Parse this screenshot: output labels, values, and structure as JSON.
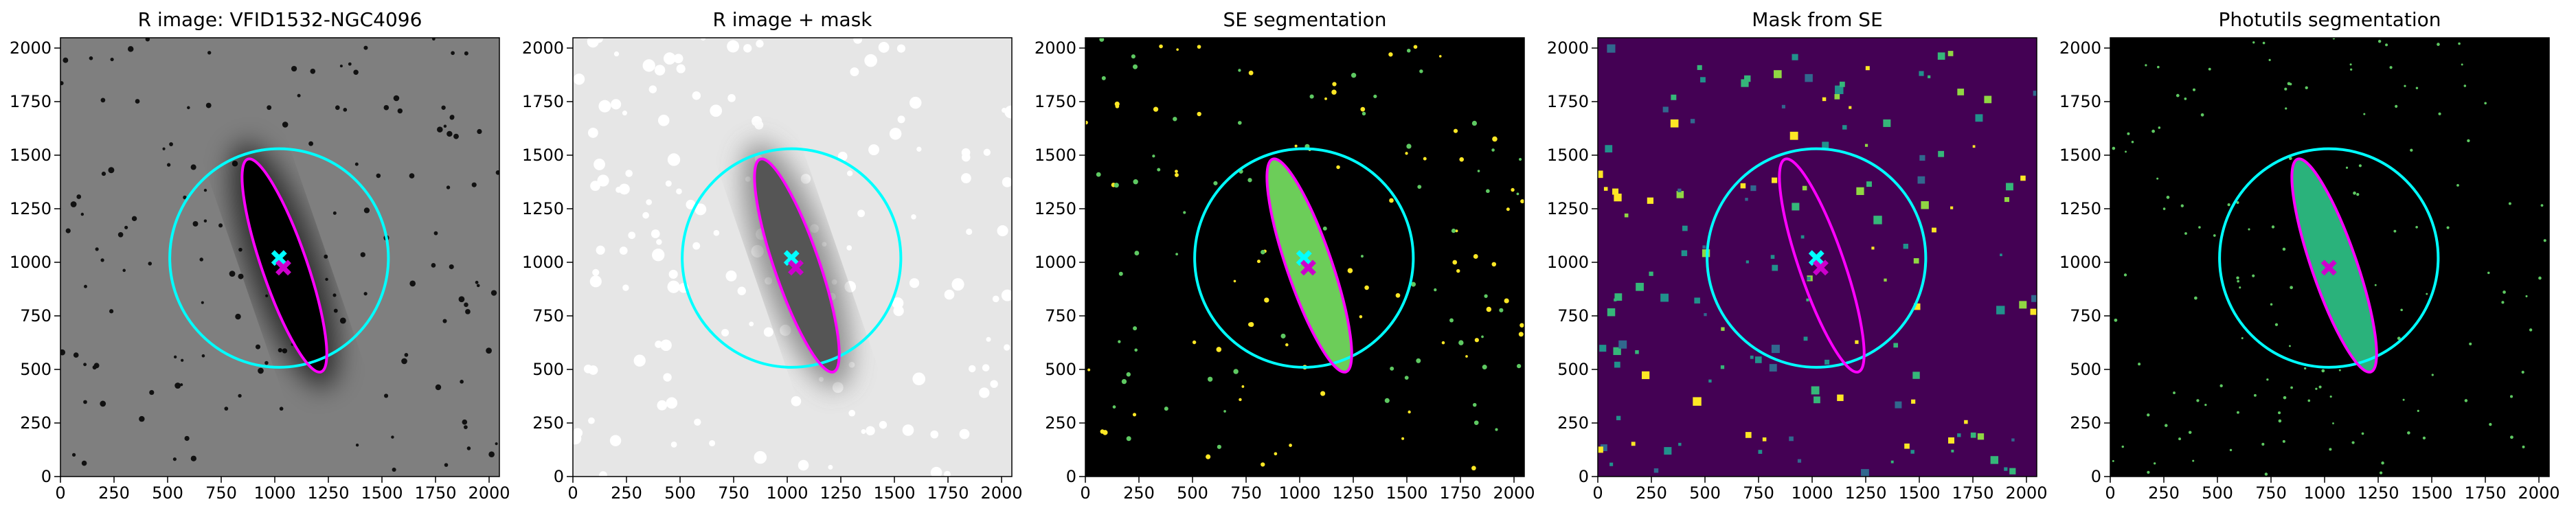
{
  "chart_data": [
    {
      "type": "image",
      "title": "R image: VFID1532-NGC4096",
      "xlim": [
        0,
        2048
      ],
      "ylim": [
        0,
        2048
      ],
      "xticks": [
        0,
        250,
        500,
        750,
        1000,
        1250,
        1500,
        1750,
        2000
      ],
      "yticks": [
        0,
        250,
        500,
        750,
        1000,
        1250,
        1500,
        1750,
        2000
      ],
      "background": "#7f7f7f",
      "ellipse_fill": "#000000",
      "circle": {
        "x": 1020,
        "y": 1020,
        "r": 510,
        "color": "#00ffff"
      },
      "ellipse": {
        "x": 1045,
        "y": 985,
        "a": 525,
        "b": 105,
        "angle": 109,
        "color": "#ff00ff"
      },
      "markers": [
        {
          "x": 1020,
          "y": 1020,
          "color": "#00ffff"
        },
        {
          "x": 1040,
          "y": 975,
          "color": "#cc00cc"
        }
      ]
    },
    {
      "type": "image",
      "title": "R image + mask",
      "xlim": [
        0,
        2048
      ],
      "ylim": [
        0,
        2048
      ],
      "xticks": [
        0,
        250,
        500,
        750,
        1000,
        1250,
        1500,
        1750,
        2000
      ],
      "yticks": [
        0,
        250,
        500,
        750,
        1000,
        1250,
        1500,
        1750,
        2000
      ],
      "background": "#e6e6e6",
      "ellipse_fill": "#555555",
      "circle": {
        "x": 1020,
        "y": 1020,
        "r": 510,
        "color": "#00ffff"
      },
      "ellipse": {
        "x": 1045,
        "y": 985,
        "a": 525,
        "b": 105,
        "angle": 109,
        "color": "#ff00ff"
      },
      "markers": [
        {
          "x": 1020,
          "y": 1020,
          "color": "#00ffff"
        },
        {
          "x": 1040,
          "y": 975,
          "color": "#cc00cc"
        }
      ]
    },
    {
      "type": "image",
      "title": "SE segmentation",
      "xlim": [
        0,
        2048
      ],
      "ylim": [
        0,
        2048
      ],
      "xticks": [
        0,
        250,
        500,
        750,
        1000,
        1250,
        1500,
        1750,
        2000
      ],
      "yticks": [
        0,
        250,
        500,
        750,
        1000,
        1250,
        1500,
        1750,
        2000
      ],
      "background": "#000000",
      "ellipse_fill": "#6ccd59",
      "circle": {
        "x": 1020,
        "y": 1020,
        "r": 510,
        "color": "#00ffff"
      },
      "ellipse": {
        "x": 1045,
        "y": 985,
        "a": 525,
        "b": 105,
        "angle": 109,
        "color": "#ff00ff"
      },
      "markers": [
        {
          "x": 1020,
          "y": 1020,
          "color": "#00ffff"
        },
        {
          "x": 1040,
          "y": 975,
          "color": "#cc00cc"
        }
      ]
    },
    {
      "type": "image",
      "title": "Mask from SE",
      "xlim": [
        0,
        2048
      ],
      "ylim": [
        0,
        2048
      ],
      "xticks": [
        0,
        250,
        500,
        750,
        1000,
        1250,
        1500,
        1750,
        2000
      ],
      "yticks": [
        0,
        250,
        500,
        750,
        1000,
        1250,
        1500,
        1750,
        2000
      ],
      "background": "#440154",
      "ellipse_fill": "#440154",
      "circle": {
        "x": 1020,
        "y": 1020,
        "r": 510,
        "color": "#00ffff"
      },
      "ellipse": {
        "x": 1045,
        "y": 985,
        "a": 525,
        "b": 105,
        "angle": 109,
        "color": "#ff00ff"
      },
      "markers": [
        {
          "x": 1020,
          "y": 1020,
          "color": "#00ffff"
        },
        {
          "x": 1040,
          "y": 975,
          "color": "#cc00cc"
        }
      ]
    },
    {
      "type": "image",
      "title": "Photutils segmentation",
      "xlim": [
        0,
        2048
      ],
      "ylim": [
        0,
        2048
      ],
      "xticks": [
        0,
        250,
        500,
        750,
        1000,
        1250,
        1500,
        1750,
        2000
      ],
      "yticks": [
        0,
        250,
        500,
        750,
        1000,
        1250,
        1500,
        1750,
        2000
      ],
      "background": "#000000",
      "ellipse_fill": "#2ab27b",
      "circle": {
        "x": 1020,
        "y": 1020,
        "r": 510,
        "color": "#00ffff"
      },
      "ellipse": {
        "x": 1045,
        "y": 985,
        "a": 525,
        "b": 105,
        "angle": 109,
        "color": "#ff00ff"
      },
      "markers": [
        {
          "x": 1020,
          "y": 975,
          "color": "#cc00cc"
        }
      ]
    }
  ]
}
